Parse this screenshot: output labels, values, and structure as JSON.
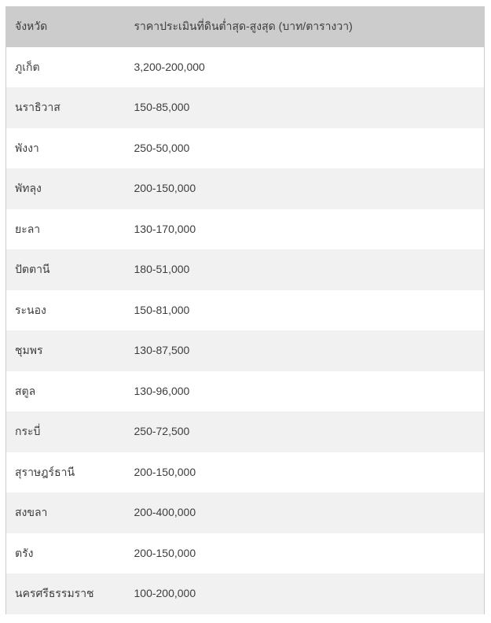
{
  "table": {
    "columns": [
      {
        "label": "จังหวัด"
      },
      {
        "label": "ราคาประเมินที่ดินต่ำสุด-สูงสุด (บาท/ตารางวา)"
      }
    ],
    "rows": [
      {
        "province": "ภูเก็ต",
        "price_range": "3,200-200,000"
      },
      {
        "province": "นราธิวาส",
        "price_range": "150-85,000"
      },
      {
        "province": "พังงา",
        "price_range": "250-50,000"
      },
      {
        "province": "พัทลุง",
        "price_range": "200-150,000"
      },
      {
        "province": "ยะลา",
        "price_range": "130-170,000"
      },
      {
        "province": "ปัตตานี",
        "price_range": "180-51,000"
      },
      {
        "province": "ระนอง",
        "price_range": "150-81,000"
      },
      {
        "province": "ชุมพร",
        "price_range": "130-87,500"
      },
      {
        "province": "สตูล",
        "price_range": "130-96,000"
      },
      {
        "province": "กระบี่",
        "price_range": "250-72,500"
      },
      {
        "province": "สุราษฎร์ธานี",
        "price_range": "200-150,000"
      },
      {
        "province": "สงขลา",
        "price_range": "200-400,000"
      },
      {
        "province": "ตรัง",
        "price_range": "200-150,000"
      },
      {
        "province": "นครศรีธรรมราช",
        "price_range": "100-200,000"
      }
    ]
  },
  "colors": {
    "header_bg": "#cccccc",
    "row_bg": "#ffffff",
    "row_alt_bg": "#f1f1f1",
    "border": "#cccccc",
    "text": "#3d3d3d"
  }
}
